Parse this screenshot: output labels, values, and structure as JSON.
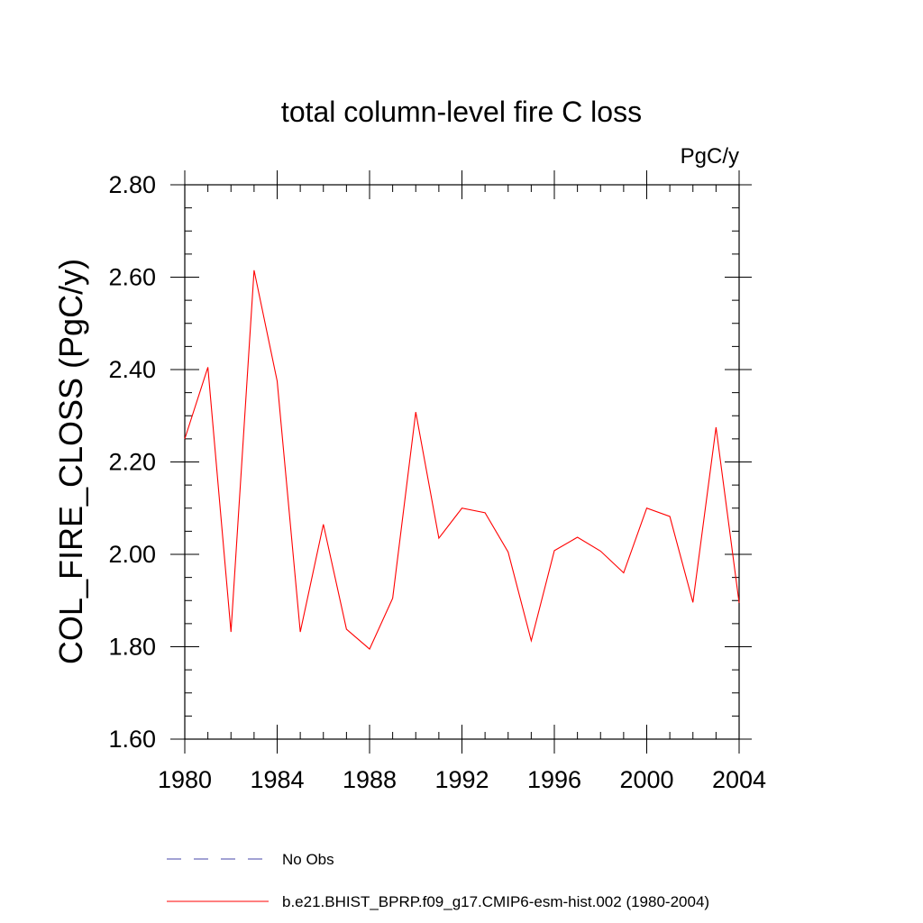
{
  "chart_data": {
    "type": "line",
    "title": "total column-level fire C loss",
    "units_label": "PgC/y",
    "ylabel": "COL_FIRE_CLOSS  (PgC/y)",
    "xlabel": "",
    "xlim": [
      1980,
      2004
    ],
    "ylim": [
      1.6,
      2.8
    ],
    "x_ticks": [
      1980,
      1984,
      1988,
      1992,
      1996,
      2000,
      2004
    ],
    "x_tick_labels": [
      "1980",
      "1984",
      "1988",
      "1992",
      "1996",
      "2000",
      "2004"
    ],
    "y_ticks": [
      1.6,
      1.8,
      2.0,
      2.2,
      2.4,
      2.6,
      2.8
    ],
    "y_tick_labels": [
      "1.60",
      "1.80",
      "2.00",
      "2.20",
      "2.40",
      "2.60",
      "2.80"
    ],
    "x_minor_step": 1,
    "y_minor_step": 0.05,
    "series": [
      {
        "name": "b.e21.BHIST_BPRP.f09_g17.CMIP6-esm-hist.002 (1980-2004)",
        "color": "#ff0000",
        "style": "solid",
        "x": [
          1980,
          1981,
          1982,
          1983,
          1984,
          1985,
          1986,
          1987,
          1988,
          1989,
          1990,
          1991,
          1992,
          1993,
          1994,
          1995,
          1996,
          1997,
          1998,
          1999,
          2000,
          2001,
          2002,
          2003,
          2004
        ],
        "values": [
          2.25,
          2.405,
          1.832,
          2.615,
          2.375,
          1.832,
          2.065,
          1.838,
          1.795,
          1.905,
          2.308,
          2.035,
          2.1,
          2.09,
          2.005,
          1.813,
          2.008,
          2.037,
          2.007,
          1.96,
          2.1,
          2.082,
          1.896,
          2.275,
          1.895
        ]
      }
    ],
    "legend": {
      "placement": "bottom",
      "items": [
        {
          "label": "No Obs",
          "color": "#4444aa",
          "style": "dashed"
        },
        {
          "label": "b.e21.BHIST_BPRP.f09_g17.CMIP6-esm-hist.002 (1980-2004)",
          "color": "#ff0000",
          "style": "solid"
        }
      ]
    }
  }
}
